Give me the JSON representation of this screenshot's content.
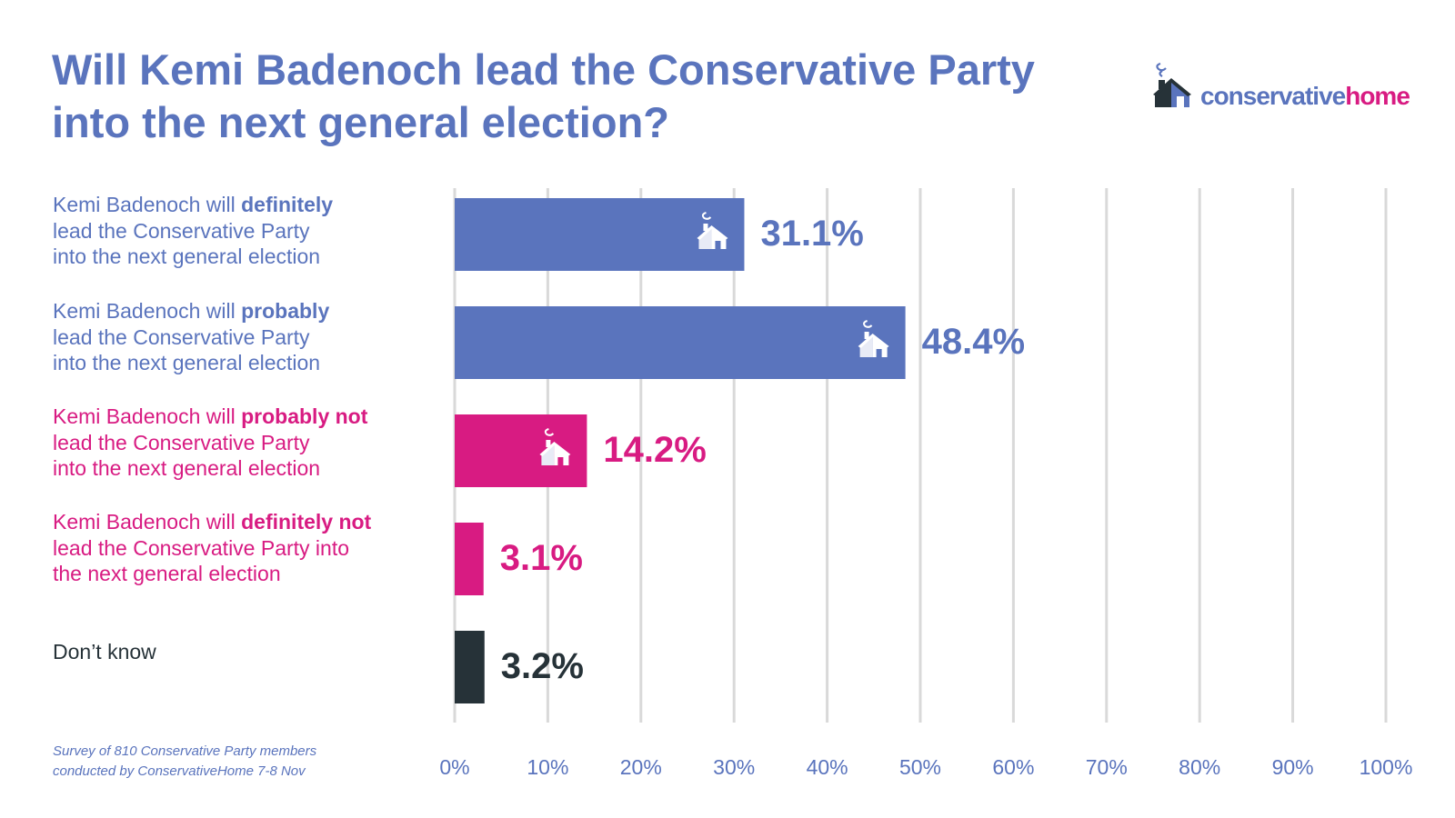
{
  "title": {
    "line1": "Will Kemi Badenoch lead the Conservative Party",
    "line2": "into the next general election?"
  },
  "logo": {
    "text_part1": "conservative",
    "text_part2": "home",
    "icon": "house-with-smoke-icon"
  },
  "colors": {
    "blue": "#5a74bd",
    "pink": "#d81b82",
    "dark": "#263238",
    "grid": "#d9d9d9"
  },
  "labels": [
    {
      "pre": "Kemi Badenoch will ",
      "bold": "definitely",
      "line2": "lead the Conservative Party",
      "line3": "into the next general election",
      "color": "#5a74bd"
    },
    {
      "pre": "Kemi Badenoch will ",
      "bold": "probably",
      "line2": "lead the Conservative Party",
      "line3": "into the next general election",
      "color": "#5a74bd"
    },
    {
      "pre": "Kemi Badenoch will ",
      "bold": "probably not",
      "line2": "lead the Conservative Party",
      "line3": "into the next general election",
      "color": "#d81b82"
    },
    {
      "pre": "Kemi Badenoch will ",
      "bold": "definitely not",
      "line2": "lead the Conservative Party into",
      "line3": "the next general election",
      "color": "#d81b82"
    },
    {
      "pre": "Don’t know",
      "bold": "",
      "line2": "",
      "line3": "",
      "color": "#263238"
    }
  ],
  "footnote": {
    "line1": "Survey of 810 Conservative Party members",
    "line2": "conducted by ConservativeHome 7-8 Nov"
  },
  "chart_data": {
    "type": "bar",
    "orientation": "horizontal",
    "title": "Will Kemi Badenoch lead the Conservative Party into the next general election?",
    "categories": [
      "Kemi Badenoch will definitely lead the Conservative Party into the next general election",
      "Kemi Badenoch will probably lead the Conservative Party into the next general election",
      "Kemi Badenoch will probably not lead the Conservative Party into the next general election",
      "Kemi Badenoch will definitely not lead the Conservative Party into the next general election",
      "Don’t know"
    ],
    "values": [
      31.1,
      48.4,
      14.2,
      3.1,
      3.2
    ],
    "value_labels": [
      "31.1%",
      "48.4%",
      "14.2%",
      "3.1%",
      "3.2%"
    ],
    "colors": [
      "#5a74bd",
      "#5a74bd",
      "#d81b82",
      "#d81b82",
      "#263238"
    ],
    "show_house_icon": [
      true,
      true,
      true,
      false,
      false
    ],
    "xlim": [
      0,
      100
    ],
    "xticks": [
      0,
      10,
      20,
      30,
      40,
      50,
      60,
      70,
      80,
      90,
      100
    ],
    "xtick_labels": [
      "0%",
      "10%",
      "20%",
      "30%",
      "40%",
      "50%",
      "60%",
      "70%",
      "80%",
      "90%",
      "100%"
    ],
    "grid": "vertical",
    "xlabel": "",
    "ylabel": ""
  }
}
